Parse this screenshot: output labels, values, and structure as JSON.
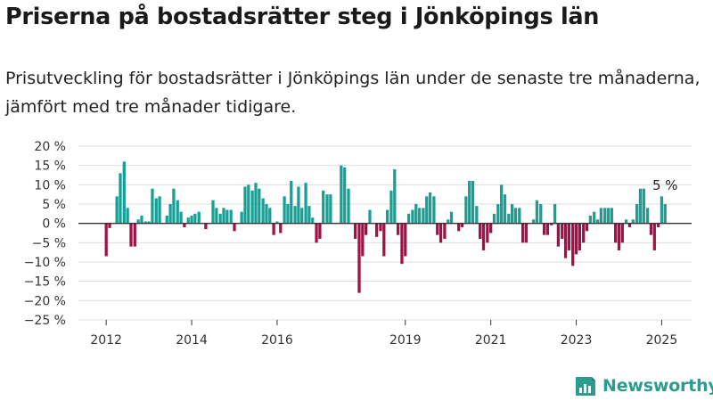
{
  "title": "Priserna på bostadsrätter steg i Jönköpings län",
  "subtitle": "Prisutveckling för bostadsrätter i Jönköpings län under de senaste tre månaderna, jämfört med tre månader tidigare.",
  "brand": "Newsworthy",
  "colors": {
    "positive": "#17a096",
    "negative": "#a50f48",
    "grid": "#dddddd",
    "axis": "#333333",
    "brand": "#2a9d8f"
  },
  "chart_data": {
    "type": "bar",
    "title": "",
    "xlabel": "",
    "ylabel": "",
    "unit": "%",
    "ylim": [
      -25,
      20
    ],
    "y_ticks": [
      20,
      15,
      10,
      5,
      0,
      -5,
      -10,
      -15,
      -20,
      -25
    ],
    "y_tick_labels": [
      "20 %",
      "15 %",
      "10 %",
      "5 %",
      "0 %",
      "−5 %",
      "−10 %",
      "−15 %",
      "−20 %",
      "−25 %"
    ],
    "x_range": [
      2011.35,
      2025.7
    ],
    "x_ticks": [
      2012,
      2014,
      2016,
      2019,
      2021,
      2023,
      2025
    ],
    "x_tick_labels": [
      "2012",
      "2014",
      "2016",
      "2019",
      "2021",
      "2023",
      "2025"
    ],
    "annotation": {
      "label": "5 %",
      "x": 2025.08,
      "value": 5
    },
    "x": [
      2012.0,
      2012.08,
      2012.17,
      2012.25,
      2012.33,
      2012.42,
      2012.5,
      2012.58,
      2012.67,
      2012.75,
      2012.83,
      2012.92,
      2013.0,
      2013.08,
      2013.17,
      2013.25,
      2013.33,
      2013.42,
      2013.5,
      2013.58,
      2013.67,
      2013.75,
      2013.83,
      2013.92,
      2014.0,
      2014.08,
      2014.17,
      2014.25,
      2014.33,
      2014.42,
      2014.5,
      2014.58,
      2014.67,
      2014.75,
      2014.83,
      2014.92,
      2015.0,
      2015.08,
      2015.17,
      2015.25,
      2015.33,
      2015.42,
      2015.5,
      2015.58,
      2015.67,
      2015.75,
      2015.83,
      2015.92,
      2016.0,
      2016.08,
      2016.17,
      2016.25,
      2016.33,
      2016.42,
      2016.5,
      2016.58,
      2016.67,
      2016.75,
      2016.83,
      2016.92,
      2017.0,
      2017.08,
      2017.17,
      2017.25,
      2017.33,
      2017.42,
      2017.5,
      2017.58,
      2017.67,
      2017.75,
      2017.83,
      2017.92,
      2018.0,
      2018.08,
      2018.17,
      2018.25,
      2018.33,
      2018.42,
      2018.5,
      2018.58,
      2018.67,
      2018.75,
      2018.83,
      2018.92,
      2019.0,
      2019.08,
      2019.17,
      2019.25,
      2019.33,
      2019.42,
      2019.5,
      2019.58,
      2019.67,
      2019.75,
      2019.83,
      2019.92,
      2020.0,
      2020.08,
      2020.17,
      2020.25,
      2020.33,
      2020.42,
      2020.5,
      2020.58,
      2020.67,
      2020.75,
      2020.83,
      2020.92,
      2021.0,
      2021.08,
      2021.17,
      2021.25,
      2021.33,
      2021.42,
      2021.5,
      2021.58,
      2021.67,
      2021.75,
      2021.83,
      2021.92,
      2022.0,
      2022.08,
      2022.17,
      2022.25,
      2022.33,
      2022.42,
      2022.5,
      2022.58,
      2022.67,
      2022.75,
      2022.83,
      2022.92,
      2023.0,
      2023.08,
      2023.17,
      2023.25,
      2023.33,
      2023.42,
      2023.5,
      2023.58,
      2023.67,
      2023.75,
      2023.83,
      2023.92,
      2024.0,
      2024.08,
      2024.17,
      2024.25,
      2024.33,
      2024.42,
      2024.5,
      2024.58,
      2024.67,
      2024.75,
      2024.83,
      2024.92,
      2025.0,
      2025.08
    ],
    "values": [
      -8.5,
      -1.2,
      0,
      7,
      13,
      16,
      4,
      -6,
      -6,
      1,
      2,
      0.5,
      0.5,
      9,
      6.5,
      7,
      0,
      2,
      5,
      9,
      6,
      3,
      -1,
      1.5,
      2,
      2.5,
      3,
      0,
      -1.5,
      0,
      6,
      4,
      2.5,
      4,
      3.5,
      3.5,
      -2,
      0,
      3,
      9.5,
      10,
      8.5,
      10.5,
      9,
      6.5,
      5,
      4,
      -3,
      0.5,
      -2.5,
      7,
      5,
      11,
      4.5,
      9.5,
      4,
      10.5,
      4.5,
      1.5,
      -5,
      -4,
      8.5,
      7.5,
      7.5,
      0,
      0,
      15,
      14.5,
      9,
      0,
      -4,
      -18,
      -8.5,
      -3,
      3.5,
      0,
      -3.5,
      -2,
      -8.5,
      3.5,
      8.5,
      14,
      -3,
      -10.5,
      -8.5,
      2.5,
      3.5,
      5,
      4,
      4,
      7,
      8,
      7,
      -3,
      -5,
      -4,
      1,
      3,
      0,
      -2,
      -1,
      7,
      11,
      11,
      4.5,
      -4,
      -7,
      -5,
      -2.5,
      2.5,
      5,
      10,
      7.5,
      2.5,
      5,
      4,
      4,
      -5,
      -5,
      0,
      1,
      6,
      5,
      -3,
      -3,
      -0.5,
      5,
      -6,
      -4,
      -9,
      -7,
      -11,
      -8,
      -7,
      -5,
      -2,
      2,
      3,
      1,
      4,
      4,
      4,
      4,
      -5,
      -7,
      -5,
      1,
      -1,
      1,
      5,
      9,
      9,
      4,
      -3,
      -7,
      -1,
      7,
      5
    ]
  }
}
